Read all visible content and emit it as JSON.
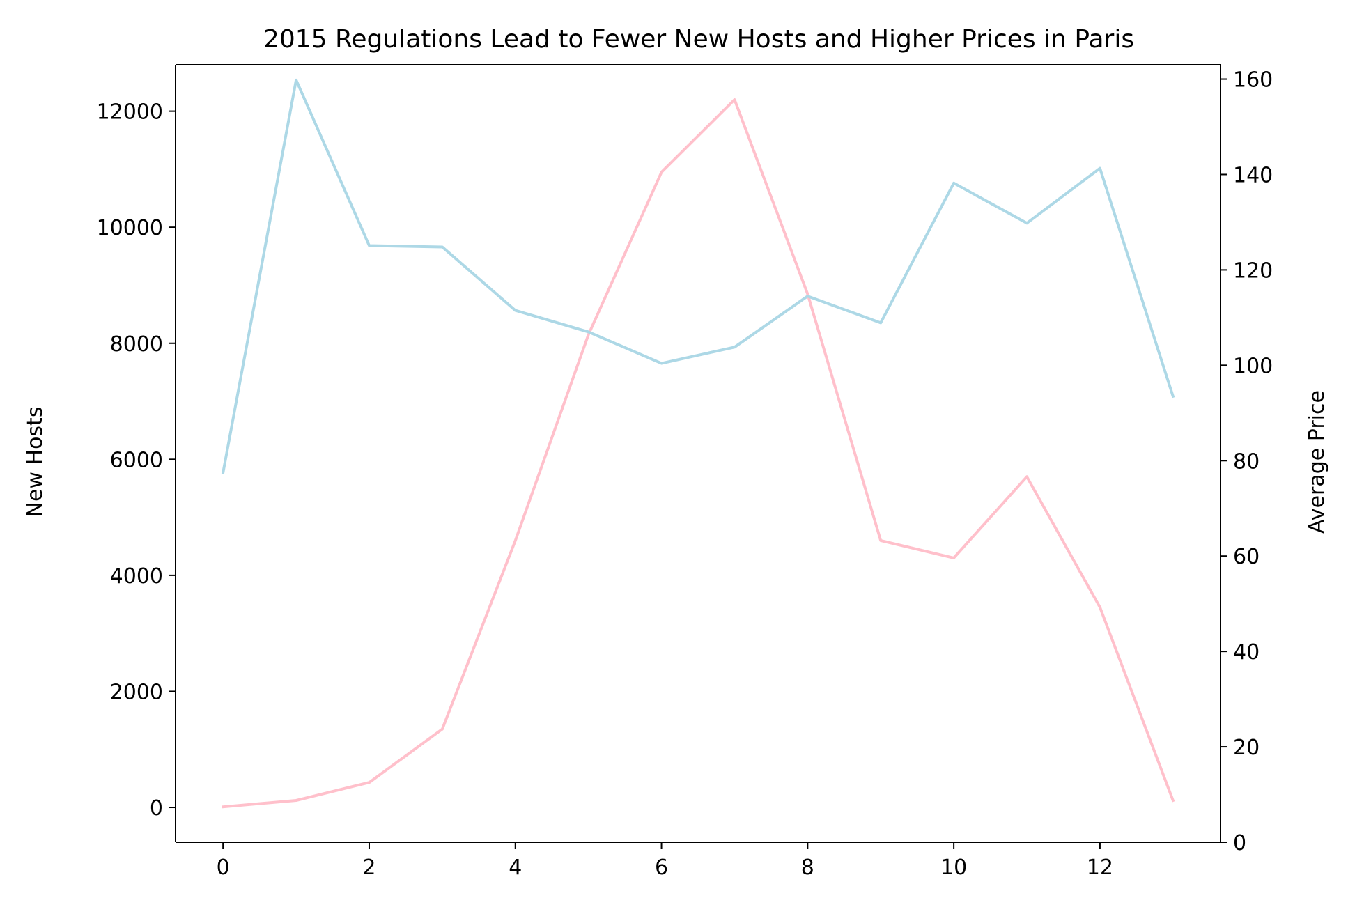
{
  "chart_data": {
    "type": "line",
    "title": "2015 Regulations Lead to Fewer New Hosts and Higher Prices in Paris",
    "xlabel": "",
    "ylabel": "New Hosts",
    "y2label": "Average Price",
    "x": [
      0,
      1,
      2,
      3,
      4,
      5,
      6,
      7,
      8,
      9,
      10,
      11,
      12,
      13
    ],
    "xlim": [
      -0.65,
      13.65
    ],
    "ylim": [
      -600,
      12800
    ],
    "y2lim": [
      0,
      163
    ],
    "xticks": [
      0,
      2,
      4,
      6,
      8,
      10,
      12
    ],
    "yticks": [
      0,
      2000,
      4000,
      6000,
      8000,
      10000,
      12000
    ],
    "y2ticks": [
      0,
      20,
      40,
      60,
      80,
      100,
      120,
      140,
      160
    ],
    "grid": false,
    "series": [
      {
        "axis": "left",
        "color": "#ffc0cb",
        "values": [
          10,
          120,
          430,
          1350,
          4600,
          8150,
          10950,
          12200,
          8850,
          4600,
          4300,
          5700,
          3450,
          120
        ]
      },
      {
        "axis": "right",
        "color": "#add8e6",
        "values": [
          77.5,
          159.8,
          125.1,
          124.8,
          111.5,
          107.0,
          100.4,
          103.8,
          114.5,
          108.9,
          138.2,
          129.8,
          141.3,
          93.5
        ]
      }
    ]
  }
}
